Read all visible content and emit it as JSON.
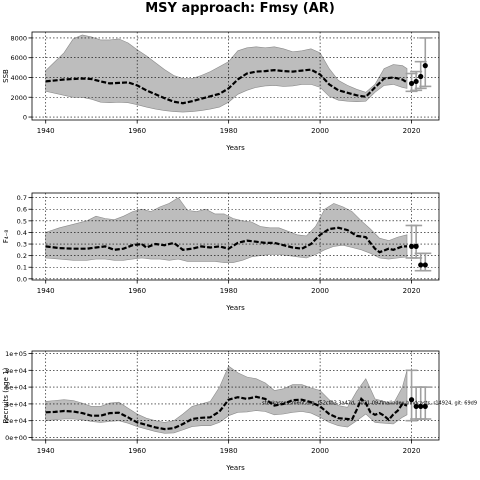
{
  "title": "MSY approach: Fmsy (AR)",
  "chart_data": [
    {
      "type": "area",
      "xlabel": "Years",
      "ylabel": "SSB",
      "xlim": [
        1937,
        2026
      ],
      "ylim": [
        -300,
        8600
      ],
      "xticks": [
        1940,
        1960,
        1980,
        2000,
        2020
      ],
      "xtick_labels": [
        "1940",
        "1960",
        "1980",
        "2000",
        "2020"
      ],
      "yticks": [
        0,
        2000,
        4000,
        6000,
        8000
      ],
      "ytick_labels": [
        "0",
        "2000",
        "4000",
        "6000",
        "8000"
      ],
      "grid": true,
      "fill_color": "#bdbdbd",
      "median": {
        "x": [
          1940,
          1944,
          1948,
          1950,
          1952,
          1954,
          1956,
          1958,
          1960,
          1962,
          1964,
          1966,
          1968,
          1970,
          1972,
          1974,
          1976,
          1978,
          1980,
          1982,
          1984,
          1986,
          1988,
          1990,
          1992,
          1994,
          1996,
          1998,
          2000,
          2002,
          2004,
          2006,
          2008,
          2010,
          2012,
          2014,
          2016,
          2018,
          2019
        ],
        "y": [
          3600,
          3800,
          3900,
          3850,
          3600,
          3400,
          3450,
          3500,
          3200,
          2700,
          2300,
          1900,
          1550,
          1400,
          1600,
          1850,
          2100,
          2350,
          2900,
          3800,
          4400,
          4600,
          4650,
          4750,
          4650,
          4600,
          4700,
          4800,
          4300,
          3300,
          2700,
          2450,
          2200,
          2050,
          3000,
          3900,
          4000,
          3800,
          3500
        ]
      },
      "ci": {
        "x": [
          1940,
          1944,
          1946,
          1948,
          1950,
          1952,
          1954,
          1956,
          1958,
          1960,
          1962,
          1964,
          1966,
          1968,
          1970,
          1972,
          1974,
          1976,
          1978,
          1980,
          1982,
          1984,
          1986,
          1988,
          1990,
          1992,
          1994,
          1996,
          1998,
          2000,
          2002,
          2004,
          2006,
          2008,
          2010,
          2012,
          2014,
          2016,
          2018,
          2019
        ],
        "lower": [
          2600,
          2200,
          2000,
          2000,
          1800,
          1500,
          1450,
          1500,
          1450,
          1250,
          1000,
          800,
          650,
          550,
          500,
          550,
          650,
          800,
          1000,
          1500,
          2300,
          2700,
          3000,
          3150,
          3200,
          3100,
          3150,
          3300,
          3300,
          3000,
          2100,
          1700,
          1600,
          1550,
          1600,
          2500,
          3200,
          3300,
          3000,
          2900
        ],
        "upper": [
          4700,
          6500,
          7900,
          8300,
          8100,
          7800,
          7800,
          7900,
          7500,
          6800,
          6200,
          5500,
          4800,
          4200,
          3900,
          3900,
          4200,
          4600,
          5100,
          5600,
          6700,
          7000,
          7100,
          7000,
          7100,
          6900,
          6600,
          6700,
          6900,
          6500,
          4900,
          3700,
          3200,
          2800,
          2500,
          3300,
          4900,
          5300,
          5200,
          4900
        ]
      },
      "points": {
        "x": [
          2020,
          2021,
          2022,
          2023
        ],
        "y": [
          3400,
          3600,
          4100,
          5200
        ]
      },
      "errorbars": [
        {
          "x": 2020,
          "lower": 2600,
          "upper": 4400
        },
        {
          "x": 2021,
          "lower": 2700,
          "upper": 4600
        },
        {
          "x": 2022,
          "lower": 2900,
          "upper": 5600
        },
        {
          "x": 2023,
          "lower": 3100,
          "upper": 8000
        }
      ]
    },
    {
      "type": "area",
      "xlabel": "Years",
      "ylabel": "F₄₋₈",
      "xlim": [
        1937,
        2026
      ],
      "ylim": [
        -0.01,
        0.74
      ],
      "xticks": [
        1940,
        1960,
        1980,
        2000,
        2020
      ],
      "xtick_labels": [
        "1940",
        "1960",
        "1980",
        "2000",
        "2020"
      ],
      "yticks": [
        0.0,
        0.1,
        0.2,
        0.3,
        0.4,
        0.5,
        0.6,
        0.7
      ],
      "ytick_labels": [
        "0.0",
        "0.1",
        "0.2",
        "0.3",
        "0.4",
        "0.5",
        "0.6",
        "0.7"
      ],
      "grid": true,
      "fill_color": "#bdbdbd",
      "median": {
        "x": [
          1940,
          1943,
          1946,
          1949,
          1951,
          1953,
          1955,
          1957,
          1959,
          1961,
          1962,
          1964,
          1966,
          1968,
          1970,
          1972,
          1974,
          1976,
          1978,
          1980,
          1982,
          1984,
          1986,
          1988,
          1990,
          1992,
          1994,
          1996,
          1998,
          2000,
          2002,
          2004,
          2006,
          2008,
          2010,
          2012,
          2013,
          2015,
          2016,
          2018,
          2019
        ],
        "y": [
          0.28,
          0.265,
          0.26,
          0.26,
          0.27,
          0.28,
          0.25,
          0.26,
          0.29,
          0.3,
          0.27,
          0.3,
          0.29,
          0.31,
          0.25,
          0.26,
          0.28,
          0.27,
          0.28,
          0.26,
          0.31,
          0.33,
          0.32,
          0.31,
          0.31,
          0.29,
          0.27,
          0.26,
          0.3,
          0.38,
          0.43,
          0.44,
          0.42,
          0.37,
          0.36,
          0.26,
          0.23,
          0.26,
          0.25,
          0.28,
          0.28
        ]
      },
      "ci": {
        "x": [
          1940,
          1943,
          1946,
          1949,
          1951,
          1953,
          1955,
          1957,
          1959,
          1961,
          1963,
          1965,
          1967,
          1969,
          1971,
          1973,
          1975,
          1977,
          1979,
          1981,
          1983,
          1985,
          1987,
          1989,
          1991,
          1993,
          1995,
          1997,
          1999,
          2001,
          2003,
          2005,
          2007,
          2009,
          2011,
          2013,
          2015,
          2017,
          2019
        ],
        "lower": [
          0.18,
          0.17,
          0.16,
          0.16,
          0.17,
          0.17,
          0.16,
          0.16,
          0.17,
          0.18,
          0.17,
          0.17,
          0.16,
          0.17,
          0.15,
          0.15,
          0.15,
          0.15,
          0.14,
          0.14,
          0.16,
          0.19,
          0.2,
          0.21,
          0.21,
          0.2,
          0.19,
          0.18,
          0.21,
          0.25,
          0.28,
          0.29,
          0.27,
          0.25,
          0.22,
          0.18,
          0.17,
          0.18,
          0.19
        ],
        "upper": [
          0.4,
          0.44,
          0.47,
          0.5,
          0.54,
          0.52,
          0.51,
          0.54,
          0.58,
          0.6,
          0.58,
          0.62,
          0.65,
          0.7,
          0.59,
          0.58,
          0.6,
          0.56,
          0.56,
          0.52,
          0.5,
          0.49,
          0.45,
          0.44,
          0.44,
          0.41,
          0.38,
          0.37,
          0.45,
          0.6,
          0.65,
          0.62,
          0.58,
          0.5,
          0.43,
          0.35,
          0.33,
          0.36,
          0.38
        ]
      },
      "points": {
        "x": [
          2020,
          2021,
          2022,
          2023
        ],
        "y": [
          0.28,
          0.28,
          0.12,
          0.12
        ]
      },
      "errorbars": [
        {
          "x": 2020,
          "lower": 0.18,
          "upper": 0.46
        },
        {
          "x": 2021,
          "lower": 0.18,
          "upper": 0.46
        },
        {
          "x": 2022,
          "lower": 0.07,
          "upper": 0.22
        },
        {
          "x": 2023,
          "lower": 0.07,
          "upper": 0.22
        }
      ]
    },
    {
      "type": "area",
      "xlabel": "Years",
      "ylabel": "Recruits (age 1)",
      "annotation": "stockassessment.org, f52cf03 3a47d, 2021-09-finalindex-hindcasts, r14924, git: 69d9",
      "xlim": [
        1937,
        2026
      ],
      "ylim": [
        -3000,
        103000
      ],
      "xticks": [
        1940,
        1960,
        1980,
        2000,
        2020
      ],
      "xtick_labels": [
        "1940",
        "1960",
        "1980",
        "2000",
        "2020"
      ],
      "yticks": [
        0,
        20000,
        40000,
        60000,
        80000,
        100000
      ],
      "ytick_labels": [
        "0e+00",
        "2e+04",
        "4e+04",
        "6e+04",
        "8e+04",
        "1e+05"
      ],
      "grid": true,
      "fill_color": "#bdbdbd",
      "median": {
        "x": [
          1940,
          1942,
          1944,
          1946,
          1948,
          1950,
          1952,
          1954,
          1956,
          1958,
          1960,
          1962,
          1964,
          1966,
          1968,
          1970,
          1972,
          1974,
          1976,
          1978,
          1980,
          1982,
          1984,
          1986,
          1988,
          1990,
          1992,
          1994,
          1996,
          1998,
          2000,
          2002,
          2004,
          2006,
          2007,
          2008,
          2009,
          2010,
          2011,
          2012,
          2013,
          2014,
          2015,
          2016,
          2017,
          2018,
          2019
        ],
        "y": [
          30000,
          30500,
          31500,
          31000,
          29000,
          26000,
          26000,
          29000,
          29500,
          24000,
          18000,
          15000,
          12000,
          10000,
          11000,
          16000,
          22000,
          23500,
          24000,
          31000,
          45000,
          48000,
          46000,
          48500,
          46000,
          38000,
          40000,
          44500,
          45000,
          42000,
          37000,
          28000,
          23000,
          22000,
          21500,
          33000,
          46000,
          41000,
          30000,
          27000,
          29000,
          26000,
          21000,
          27500,
          32000,
          40000,
          38000
        ]
      },
      "ci": {
        "x": [
          1940,
          1942,
          1944,
          1946,
          1948,
          1950,
          1952,
          1954,
          1956,
          1958,
          1960,
          1962,
          1964,
          1966,
          1968,
          1970,
          1972,
          1974,
          1976,
          1978,
          1980,
          1982,
          1984,
          1986,
          1988,
          1990,
          1992,
          1994,
          1996,
          1998,
          2000,
          2002,
          2004,
          2006,
          2008,
          2010,
          2012,
          2014,
          2016,
          2018,
          2019
        ],
        "lower": [
          20000,
          21000,
          22000,
          22000,
          21000,
          19000,
          18000,
          19000,
          20000,
          17000,
          13000,
          10000,
          7000,
          5000,
          5500,
          9000,
          13000,
          14000,
          14000,
          18000,
          26000,
          30000,
          30500,
          32000,
          31000,
          27000,
          28000,
          30000,
          31000,
          29000,
          24000,
          18000,
          14000,
          12500,
          20000,
          28000,
          18000,
          17000,
          16000,
          24000,
          27000
        ],
        "upper": [
          43000,
          44000,
          45000,
          44000,
          41000,
          37000,
          37000,
          41000,
          42000,
          35000,
          28000,
          23000,
          20000,
          18000,
          20000,
          28000,
          37000,
          40000,
          43000,
          60000,
          85000,
          77000,
          72000,
          70000,
          65000,
          56000,
          58000,
          63000,
          63000,
          59000,
          56000,
          45000,
          38000,
          36000,
          55000,
          70000,
          46000,
          43000,
          40000,
          60000,
          80000
        ]
      },
      "points": {
        "x": [
          2020,
          2021,
          2022,
          2023
        ],
        "y": [
          45000,
          37000,
          37000,
          37000
        ]
      },
      "errorbars": [
        {
          "x": 2020,
          "lower": 20000,
          "upper": 80000
        },
        {
          "x": 2021,
          "lower": 22000,
          "upper": 60000
        },
        {
          "x": 2022,
          "lower": 22000,
          "upper": 60000
        },
        {
          "x": 2023,
          "lower": 22000,
          "upper": 60000
        }
      ]
    }
  ]
}
